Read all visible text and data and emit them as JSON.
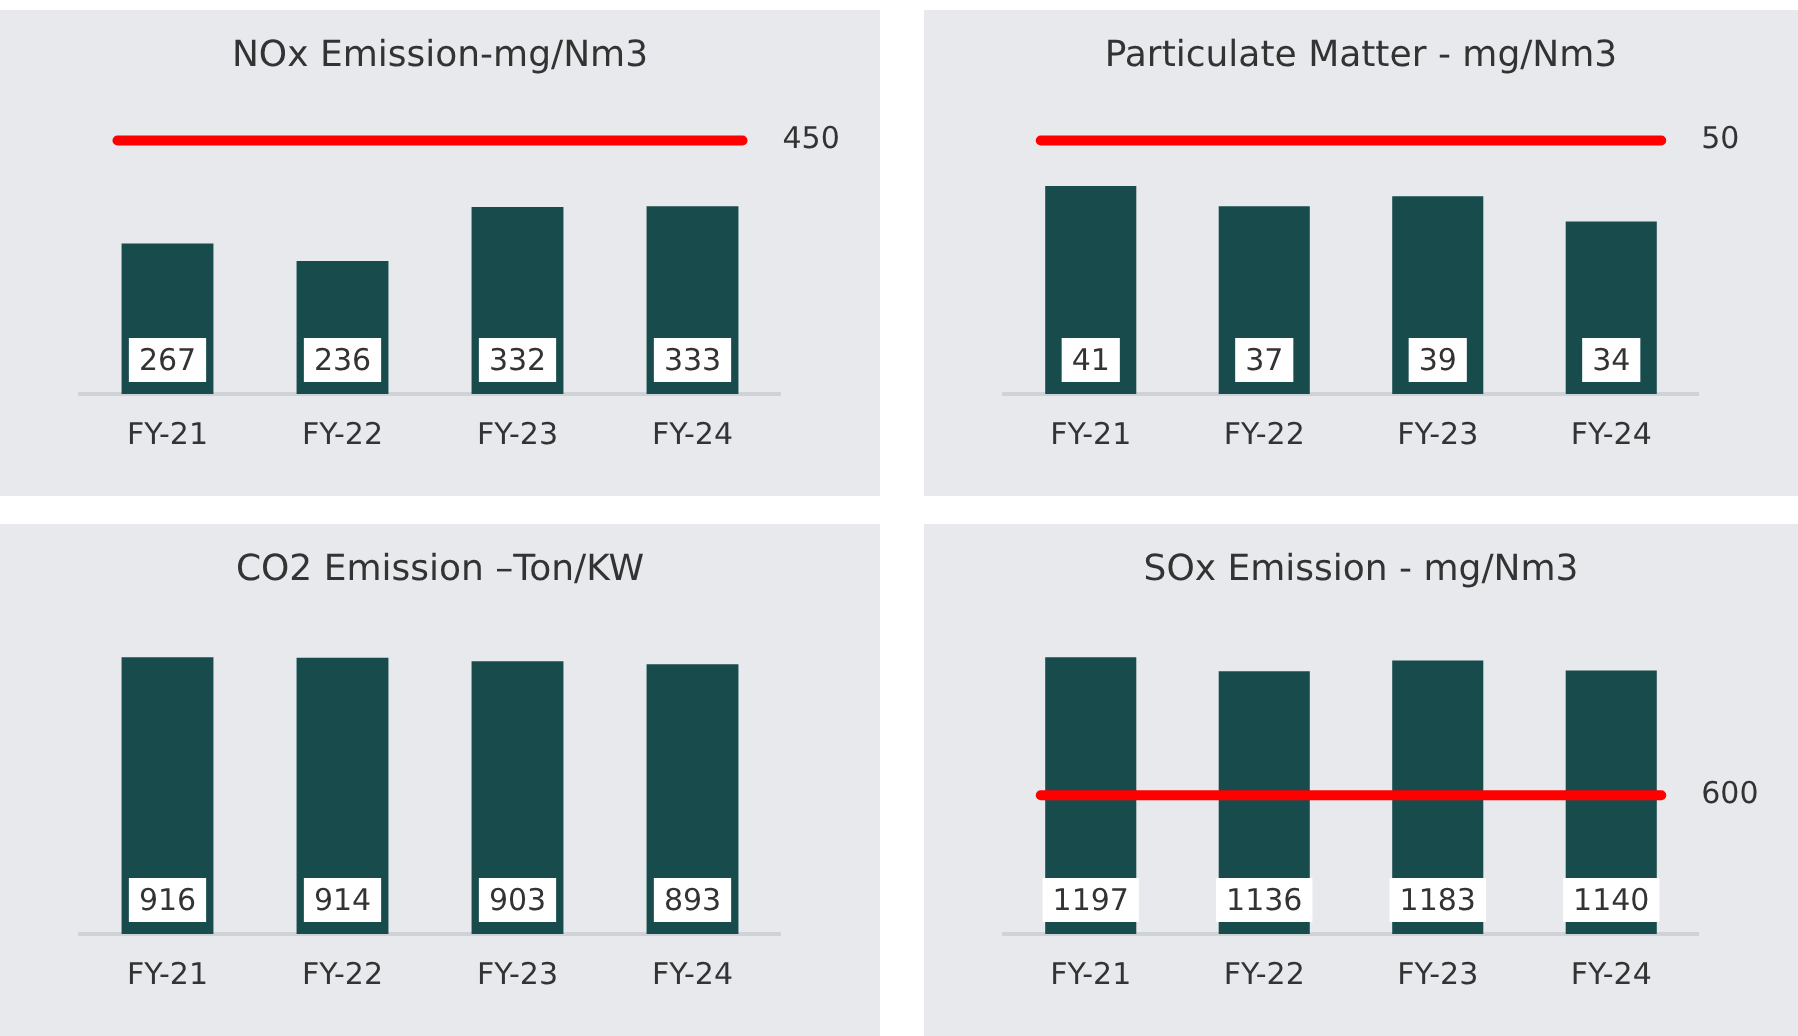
{
  "chart_data": [
    {
      "type": "bar",
      "title": "NOx Emission-mg/Nm3",
      "categories": [
        "FY-21",
        "FY-22",
        "FY-23",
        "FY-24"
      ],
      "values": [
        267,
        236,
        332,
        333
      ],
      "color": "#184b4b",
      "data_labels": true,
      "ref_lines": [
        {
          "axis": "y",
          "value": 450,
          "label": "450",
          "color": "#ff0000"
        }
      ]
    },
    {
      "type": "bar",
      "title": "Particulate Matter - mg/Nm3",
      "categories": [
        "FY-21",
        "FY-22",
        "FY-23",
        "FY-24"
      ],
      "values": [
        41,
        37,
        39,
        34
      ],
      "color": "#184b4b",
      "data_labels": true,
      "ref_lines": [
        {
          "axis": "y",
          "value": 50,
          "label": "50",
          "color": "#ff0000"
        }
      ]
    },
    {
      "type": "bar",
      "title": "CO2 Emission –Ton/KW",
      "categories": [
        "FY-21",
        "FY-22",
        "FY-23",
        "FY-24"
      ],
      "values": [
        916,
        914,
        903,
        893
      ],
      "color": "#184b4b",
      "data_labels": true
    },
    {
      "type": "bar",
      "title": "SOx Emission - mg/Nm3",
      "categories": [
        "FY-21",
        "FY-22",
        "FY-23",
        "FY-24"
      ],
      "values": [
        1197,
        1136,
        1183,
        1140
      ],
      "color": "#184b4b",
      "data_labels": true,
      "ref_lines": [
        {
          "axis": "y",
          "value": 600,
          "label": "600",
          "color": "#ff0000"
        }
      ]
    }
  ]
}
